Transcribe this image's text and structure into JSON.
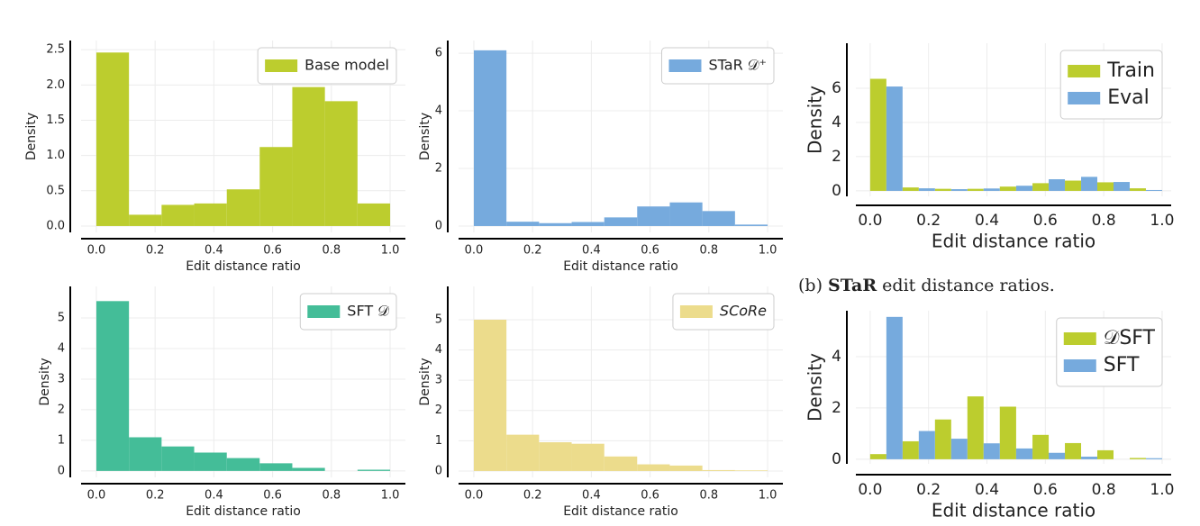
{
  "caption": [
    "(b)",
    "STaR",
    "edit distance ratios."
  ],
  "chart_data": [
    {
      "type": "histogram",
      "xlabel": "Edit distance ratio",
      "ylabel": "Density",
      "legend": "upper right",
      "grid": true,
      "bins": [
        0,
        0.111,
        0.222,
        0.333,
        0.444,
        0.556,
        0.667,
        0.778,
        0.889,
        1
      ],
      "series": [
        {
          "name": "Base model",
          "color": "#bccd2e",
          "values": [
            2.46,
            0.16,
            0.3,
            0.32,
            0.52,
            1.12,
            1.97,
            1.77,
            0.32
          ]
        }
      ],
      "xlim": [
        -0.052,
        1.052
      ],
      "ylim": [
        -0.09,
        2.63
      ],
      "xticks": [
        {
          "value": 0,
          "label": "0.0"
        },
        0.2,
        0.4,
        0.6,
        0.8,
        {
          "value": 1,
          "label": "1.0"
        }
      ],
      "yticks": [
        {
          "value": 0,
          "label": "0.0"
        },
        0.5,
        {
          "value": 1,
          "label": "1.0"
        },
        1.5,
        {
          "value": 2,
          "label": "2.0"
        },
        2.5
      ]
    },
    {
      "type": "histogram",
      "xlabel": "Edit distance ratio",
      "ylabel": "Density",
      "legend": "upper right",
      "grid": true,
      "bins": [
        0,
        0.111,
        0.222,
        0.333,
        0.444,
        0.556,
        0.667,
        0.778,
        0.889,
        1
      ],
      "series": [
        {
          "name": "STaR 𝒟⁺",
          "color": "#76aadd",
          "values": [
            6.1,
            0.15,
            0.1,
            0.14,
            0.3,
            0.68,
            0.82,
            0.52,
            0.05
          ]
        }
      ],
      "xlim": [
        -0.052,
        1.052
      ],
      "ylim": [
        -0.22,
        6.44
      ],
      "xticks": [
        {
          "value": 0,
          "label": "0.0"
        },
        0.2,
        0.4,
        0.6,
        0.8,
        {
          "value": 1,
          "label": "1.0"
        }
      ],
      "yticks": [
        0,
        2,
        4,
        6
      ]
    },
    {
      "type": "histogram",
      "xlabel": "Edit distance ratio",
      "ylabel": "Density",
      "legend": "upper right",
      "grid": true,
      "bins": [
        0,
        0.111,
        0.222,
        0.333,
        0.444,
        0.556,
        0.667,
        0.778,
        0.889,
        1
      ],
      "series": [
        {
          "name": "SFT 𝒟",
          "color": "#44bd98",
          "values": [
            5.55,
            1.1,
            0.8,
            0.6,
            0.42,
            0.25,
            0.1,
            0,
            0.04
          ]
        }
      ],
      "xlim": [
        -0.052,
        1.052
      ],
      "ylim": [
        -0.21,
        6.03
      ],
      "xticks": [
        {
          "value": 0,
          "label": "0.0"
        },
        0.2,
        0.4,
        0.6,
        0.8,
        {
          "value": 1,
          "label": "1.0"
        }
      ],
      "yticks": [
        0,
        1,
        2,
        3,
        4,
        5
      ]
    },
    {
      "type": "histogram",
      "xlabel": "Edit distance ratio",
      "ylabel": "Density",
      "legend": "upper right",
      "grid": true,
      "bins": [
        0,
        0.111,
        0.222,
        0.333,
        0.444,
        0.556,
        0.667,
        0.778,
        0.889,
        1
      ],
      "series": [
        {
          "name": "SCoRe",
          "color": "#ecdc8c",
          "values": [
            5.0,
            1.2,
            0.95,
            0.9,
            0.48,
            0.22,
            0.18,
            0.03,
            0.02
          ]
        }
      ],
      "xlim": [
        -0.052,
        1.052
      ],
      "ylim": [
        -0.21,
        6.1
      ],
      "xticks": [
        {
          "value": 0,
          "label": "0.0"
        },
        0.2,
        0.4,
        0.6,
        0.8,
        {
          "value": 1,
          "label": "1.0"
        }
      ],
      "yticks": [
        0,
        1,
        2,
        3,
        4,
        5
      ]
    },
    {
      "type": "histogram",
      "xlabel": "Edit distance ratio",
      "ylabel": "Density",
      "legend": "upper right",
      "grid": true,
      "bins": [
        0,
        0.111,
        0.222,
        0.333,
        0.444,
        0.556,
        0.667,
        0.778,
        0.889,
        1
      ],
      "series": [
        {
          "name": "Train",
          "color": "#bccd2e",
          "values": [
            6.55,
            0.2,
            0.12,
            0.12,
            0.25,
            0.45,
            0.6,
            0.5,
            0.15
          ]
        },
        {
          "name": "Eval",
          "color": "#76aadd",
          "values": [
            6.1,
            0.15,
            0.1,
            0.14,
            0.3,
            0.68,
            0.82,
            0.52,
            0.05
          ]
        }
      ],
      "xlim": [
        -0.049,
        1.031
      ],
      "ylim": [
        -0.32,
        8.63
      ],
      "xticks": [
        {
          "value": 0,
          "label": "0.0"
        },
        0.2,
        0.4,
        0.6,
        0.8,
        {
          "value": 1,
          "label": "1.0"
        }
      ],
      "yticks": [
        0,
        2,
        4,
        6
      ]
    },
    {
      "type": "histogram",
      "xlabel": "Edit distance ratio",
      "ylabel": "Density",
      "legend": "upper right",
      "grid": true,
      "bins": [
        0,
        0.111,
        0.222,
        0.333,
        0.444,
        0.556,
        0.667,
        0.778,
        0.889,
        1
      ],
      "series": [
        {
          "name": "𝒟SFT",
          "color": "#bccd2e",
          "values": [
            0.2,
            0.7,
            1.55,
            2.45,
            2.05,
            0.95,
            0.63,
            0.35,
            0.05
          ]
        },
        {
          "name": "SFT",
          "color": "#76aadd",
          "values": [
            5.55,
            1.1,
            0.8,
            0.62,
            0.42,
            0.25,
            0.1,
            0,
            0.04
          ]
        }
      ],
      "xlim": [
        -0.049,
        1.031
      ],
      "ylim": [
        -0.18,
        5.79
      ],
      "xticks": [
        {
          "value": 0,
          "label": "0.0"
        },
        0.2,
        0.4,
        0.6,
        0.8,
        {
          "value": 1,
          "label": "1.0"
        }
      ],
      "yticks": [
        0,
        2,
        4
      ]
    }
  ]
}
